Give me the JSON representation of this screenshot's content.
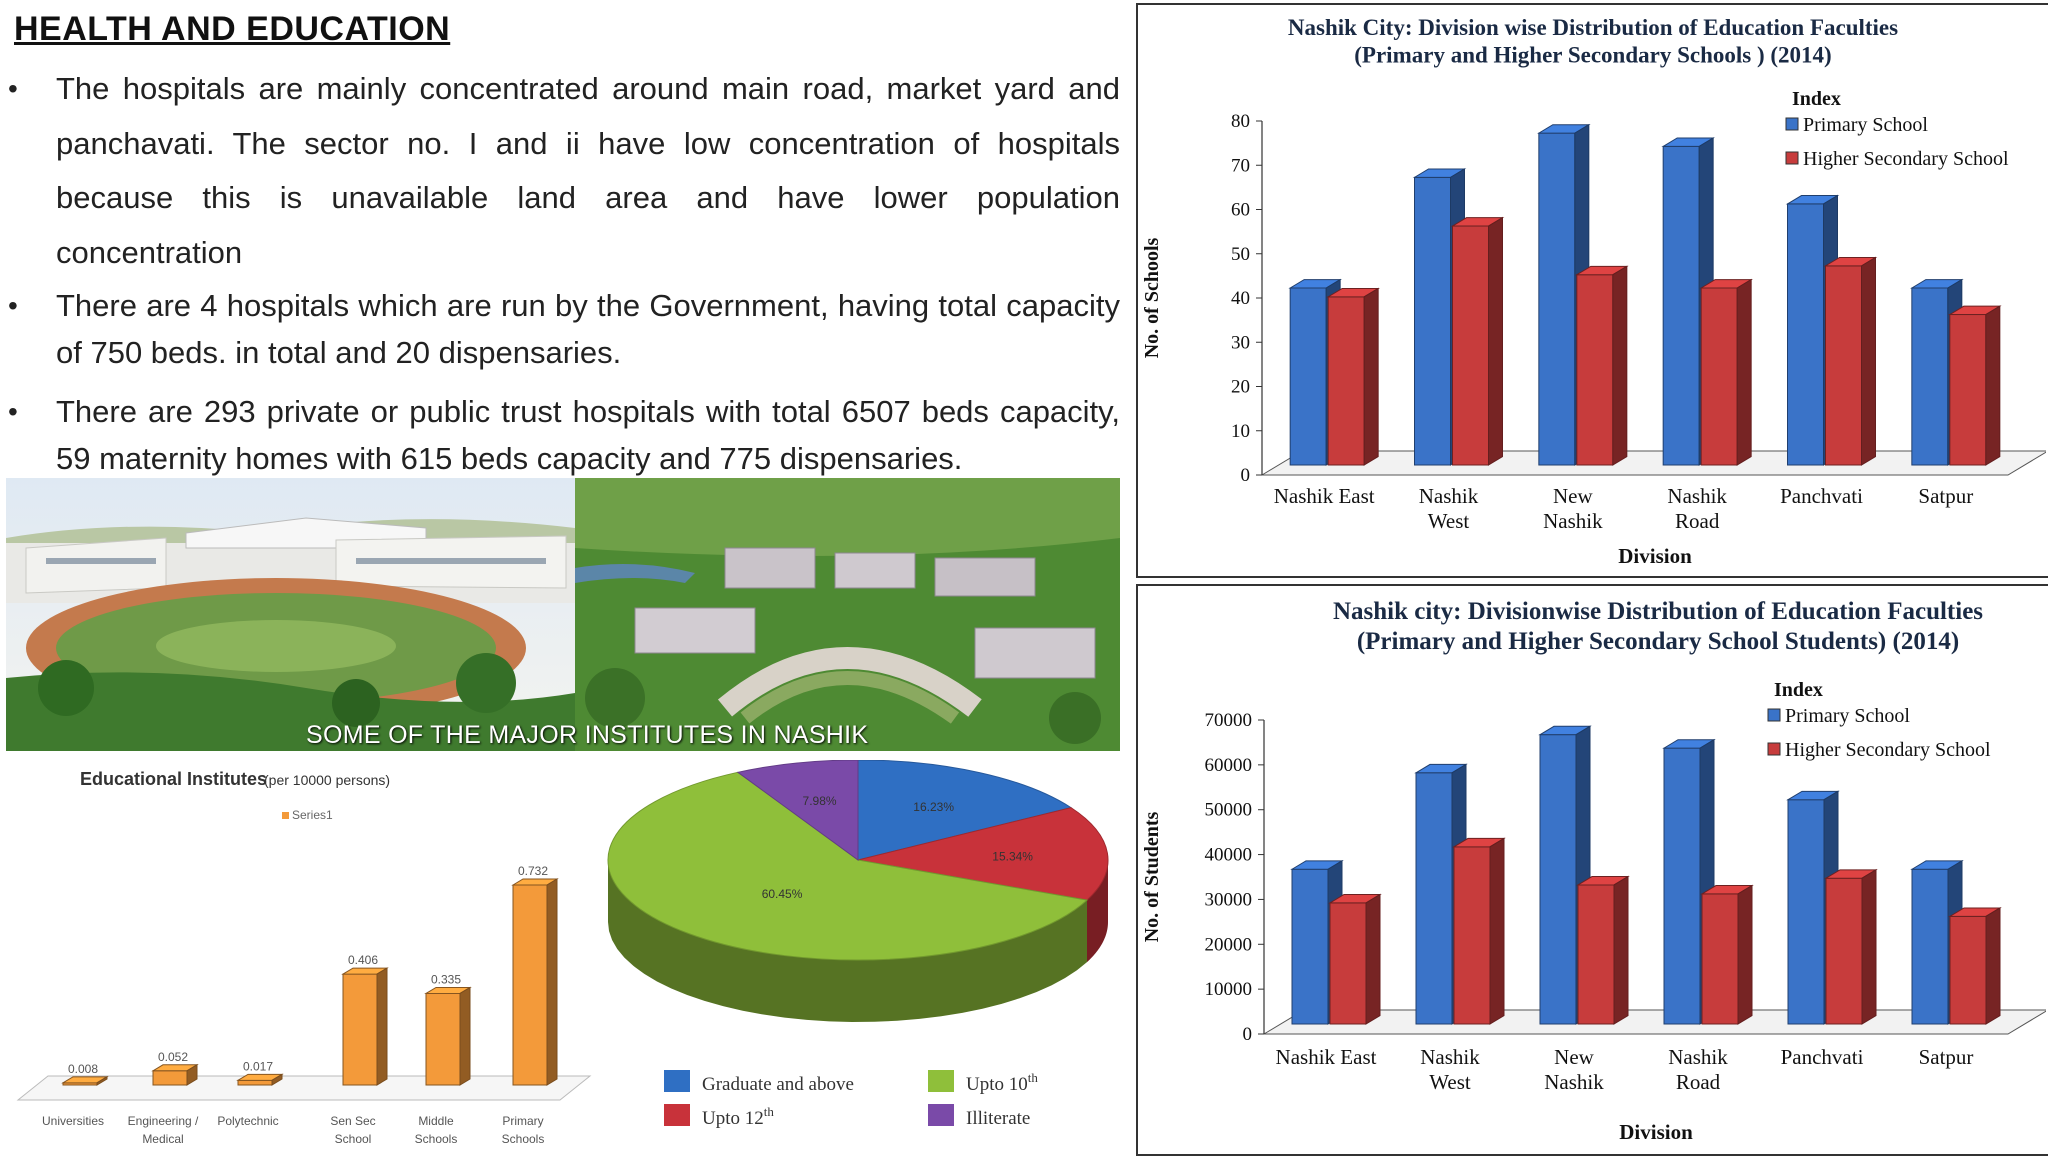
{
  "heading": "HEALTH AND EDUCATION ",
  "bullets": [
    "The hospitals are mainly concentrated around main road, market yard and panchavati. The sector no. I and ii have low concentration of hospitals because this is unavailable land area and have lower population concentration",
    "There are 4 hospitals which are run by the Government, having total capacity of 750 beds. in total and 20 dispensaries.",
    "There are 293 private or public trust hospitals with total 6507 beds capacity, 59 maternity homes  with 615 beds capacity and 775 dispensaries."
  ],
  "photos": {
    "caption": "SOME OF THE MAJOR INSTITUTES IN NASHIK"
  },
  "colors": {
    "primary_blue": "#3a73c8",
    "secondary_red": "#c73c3c",
    "orange": "#f39a3a",
    "pie_blue": "#2f6fc3",
    "pie_red": "#c8323a",
    "pie_green": "#8fbf3a",
    "pie_purple": "#7a4aa8"
  },
  "chart_data": [
    {
      "type": "bar",
      "title": "Nashik City: Division wise Distribution of Education Faculties",
      "subtitle": "(Primary and Higher Secondary Schools ) (2014)",
      "xlabel": "Division",
      "ylabel": "No. of Schools",
      "ylim": [
        0,
        80
      ],
      "yticks": [
        "0",
        "10",
        "20",
        "30",
        "40",
        "50",
        "60",
        "70",
        "80"
      ],
      "legend_title": "Index",
      "legend_position": "top-right",
      "categories": [
        [
          "Nashik East"
        ],
        [
          "Nashik",
          "West"
        ],
        [
          "New",
          "Nashik"
        ],
        [
          "Nashik",
          "Road"
        ],
        [
          "Panchvati"
        ],
        [
          "Satpur"
        ]
      ],
      "series": [
        {
          "name": "Primary School",
          "values": [
            40,
            65,
            75,
            72,
            59,
            40
          ]
        },
        {
          "name": "Higher Secondary School",
          "values": [
            38,
            54,
            43,
            40,
            45,
            34
          ]
        }
      ]
    },
    {
      "type": "bar",
      "title": "Nashik city: Divisionwise Distribution of Education Faculties",
      "subtitle": "(Primary and Higher Secondary School Students) (2014)",
      "xlabel": "Division",
      "ylabel": "No. of Students",
      "ylim": [
        0,
        70000
      ],
      "yticks": [
        "0",
        "10000",
        "20000",
        "30000",
        "40000",
        "50000",
        "60000",
        "70000"
      ],
      "legend_title": "Index",
      "legend_position": "top-right",
      "categories": [
        [
          "Nashik East"
        ],
        [
          "Nashik",
          "West"
        ],
        [
          "New",
          "Nashik"
        ],
        [
          "Nashik",
          "Road"
        ],
        [
          "Panchvati"
        ],
        [
          "Satpur"
        ]
      ],
      "series": [
        {
          "name": "Primary School",
          "values": [
            34500,
            56000,
            64500,
            61500,
            50000,
            34500
          ]
        },
        {
          "name": "Higher Secondary School",
          "values": [
            27000,
            39500,
            31000,
            29000,
            32500,
            24000
          ]
        }
      ]
    },
    {
      "type": "bar",
      "title": "Educational Institutes",
      "subtitle": "(per 10000 persons)",
      "legend_position": "top",
      "ylim": [
        0,
        0.8
      ],
      "categories": [
        [
          "Universities"
        ],
        [
          "Engineering /",
          "Medical"
        ],
        [
          "Polytechnic"
        ],
        [
          "Sen Sec",
          "School"
        ],
        [
          "Middle",
          "Schools"
        ],
        [
          "Primary",
          "Schools"
        ]
      ],
      "series": [
        {
          "name": "Series1",
          "values": [
            0.008,
            0.052,
            0.017,
            0.406,
            0.335,
            0.732
          ]
        }
      ],
      "value_labels": [
        "0.008",
        "0.052",
        "0.017",
        "0.406",
        "0.335",
        "0.732"
      ]
    },
    {
      "type": "pie",
      "legend_position": "bottom",
      "slices": [
        {
          "label": "Graduate and above",
          "value": 16.23,
          "text": "16.23%"
        },
        {
          "label": "Upto 12th",
          "value": 15.34,
          "text": "15.34%"
        },
        {
          "label": "Upto 10th",
          "value": 60.45,
          "text": "60.45%"
        },
        {
          "label": "Illiterate",
          "value": 7.98,
          "text": "7.98%"
        }
      ],
      "legend": [
        {
          "label": "Graduate and above",
          "sup": ""
        },
        {
          "label": "Upto 10",
          "sup": "th"
        },
        {
          "label": "Upto 12",
          "sup": "th"
        },
        {
          "label": "Illiterate",
          "sup": ""
        }
      ]
    }
  ]
}
